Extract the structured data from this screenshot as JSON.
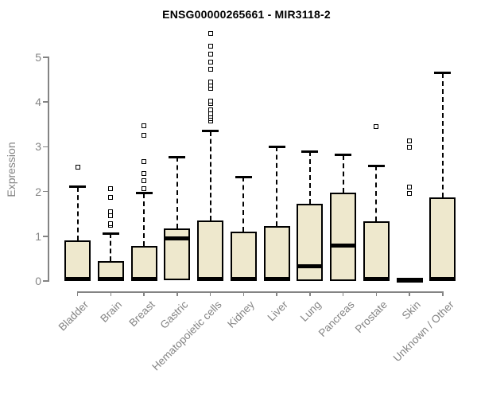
{
  "title": "ENSG00000265661 - MIR3118-2",
  "chart_data": {
    "type": "boxplot",
    "title": "ENSG00000265661 - MIR3118-2",
    "xlabel": "",
    "ylabel": "Expression",
    "ylim": [
      0,
      5.6
    ],
    "y_ticks": [
      0,
      1,
      2,
      3,
      4,
      5
    ],
    "grid": false,
    "legend": "none",
    "box_fill": "#EEE8CD",
    "box_border": "#000000",
    "axis_color": "#848484",
    "title_color": "#000000",
    "categories": [
      "Bladder",
      "Brain",
      "Breast",
      "Gastric",
      "Hematopoietic cells",
      "Kidney",
      "Liver",
      "Lung",
      "Pancreas",
      "Prostate",
      "Skin",
      "Unknown / Other"
    ],
    "series": [
      {
        "name": "Bladder",
        "q1": 0,
        "median": 0.04,
        "q3": 0.9,
        "whisker_low": 0,
        "whisker_high": 2.1,
        "outliers": [
          2.54
        ]
      },
      {
        "name": "Brain",
        "q1": 0,
        "median": 0.04,
        "q3": 0.44,
        "whisker_low": 0,
        "whisker_high": 1.06,
        "outliers": [
          1.25,
          1.28,
          1.46,
          1.55,
          1.87,
          2.06
        ]
      },
      {
        "name": "Breast",
        "q1": 0,
        "median": 0.04,
        "q3": 0.79,
        "whisker_low": 0,
        "whisker_high": 1.96,
        "outliers": [
          2.06,
          2.25,
          2.4,
          2.67,
          3.26,
          3.47
        ]
      },
      {
        "name": "Gastric",
        "q1": 0.02,
        "median": 0.95,
        "q3": 1.18,
        "whisker_low": 0.02,
        "whisker_high": 2.77,
        "outliers": []
      },
      {
        "name": "Hematopoietic cells",
        "q1": 0,
        "median": 0.04,
        "q3": 1.35,
        "whisker_low": 0,
        "whisker_high": 3.35,
        "outliers": [
          3.58,
          3.63,
          3.68,
          3.74,
          3.82,
          3.97,
          4.02,
          4.3,
          4.38,
          4.45,
          4.73,
          4.89,
          5.07,
          5.25,
          5.53
        ]
      },
      {
        "name": "Kidney",
        "q1": 0,
        "median": 0.04,
        "q3": 1.1,
        "whisker_low": 0,
        "whisker_high": 2.33,
        "outliers": []
      },
      {
        "name": "Liver",
        "q1": 0,
        "median": 0.04,
        "q3": 1.22,
        "whisker_low": 0,
        "whisker_high": 3.0,
        "outliers": []
      },
      {
        "name": "Lung",
        "q1": 0,
        "median": 0.33,
        "q3": 1.72,
        "whisker_low": 0,
        "whisker_high": 2.9,
        "outliers": []
      },
      {
        "name": "Pancreas",
        "q1": 0,
        "median": 0.8,
        "q3": 1.97,
        "whisker_low": 0,
        "whisker_high": 2.82,
        "outliers": []
      },
      {
        "name": "Prostate",
        "q1": 0,
        "median": 0.04,
        "q3": 1.33,
        "whisker_low": 0,
        "whisker_high": 2.58,
        "outliers": [
          3.45
        ]
      },
      {
        "name": "Skin",
        "q1": 0.01,
        "median": 0.02,
        "q3": 0.03,
        "whisker_low": 0.01,
        "whisker_high": 0.03,
        "outliers": [
          1.96,
          2.1,
          2.99,
          3.13
        ]
      },
      {
        "name": "Unknown / Other",
        "q1": 0,
        "median": 0.04,
        "q3": 1.87,
        "whisker_low": 0,
        "whisker_high": 4.65,
        "outliers": []
      }
    ]
  }
}
